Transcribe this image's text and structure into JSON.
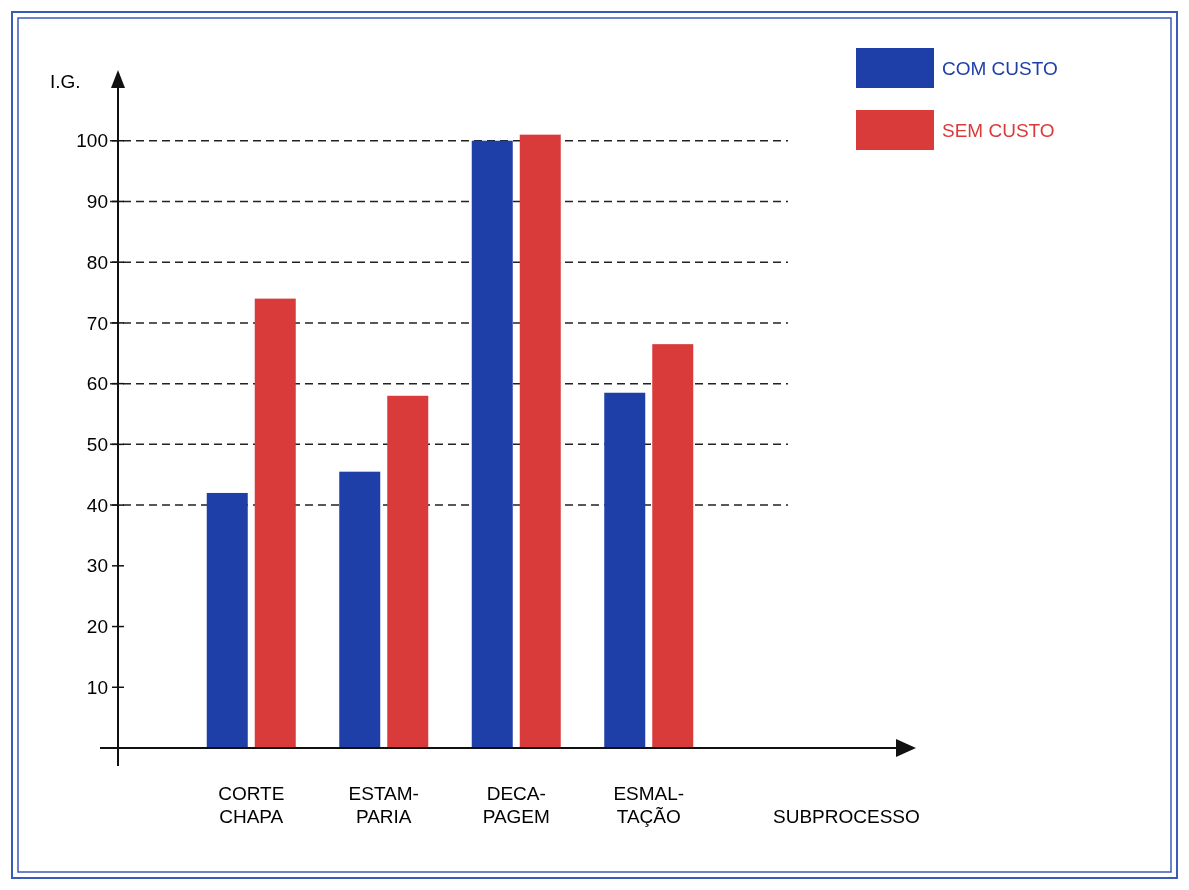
{
  "chart_data": {
    "type": "bar",
    "xlabel": "SUBPROCESSO",
    "ylabel": "I.G.",
    "categories": [
      "CORTE\nCHAPA",
      "ESTAM-\nPARIA",
      "DECA-\nPAGEM",
      "ESMAL-\nTAÇÃO"
    ],
    "series": [
      {
        "name": "COM CUSTO",
        "color": "#1f3fa8",
        "values": [
          42,
          45.5,
          100,
          58.5
        ]
      },
      {
        "name": "SEM CUSTO",
        "color": "#d93a3a",
        "values": [
          74,
          58,
          101,
          66.5
        ]
      }
    ],
    "ylim": [
      0,
      110
    ],
    "yticks": [
      10,
      20,
      30,
      40,
      50,
      60,
      70,
      80,
      90,
      100
    ],
    "ref_lines": [
      {
        "axis": "y",
        "value": 40,
        "line_style": "dashed"
      },
      {
        "axis": "y",
        "value": 50,
        "line_style": "dashed"
      },
      {
        "axis": "y",
        "value": 60,
        "line_style": "dashed"
      },
      {
        "axis": "y",
        "value": 70,
        "line_style": "dashed"
      },
      {
        "axis": "y",
        "value": 80,
        "line_style": "dashed"
      },
      {
        "axis": "y",
        "value": 90,
        "line_style": "dashed"
      },
      {
        "axis": "y",
        "value": 100,
        "line_style": "dashed"
      }
    ],
    "legend": "top right"
  }
}
